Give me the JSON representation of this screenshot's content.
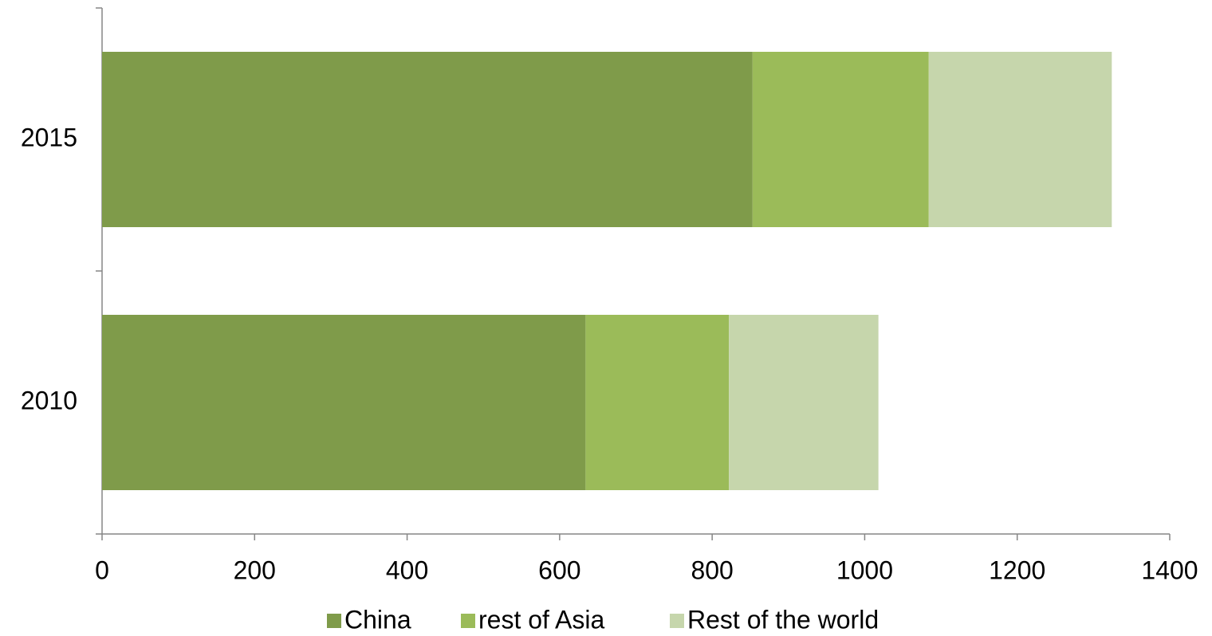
{
  "chart_data": {
    "type": "stacked-bar-horizontal",
    "categories": [
      "2010",
      "2015"
    ],
    "series": [
      {
        "name": "China",
        "color": "#7f9b4a",
        "values": [
          634,
          853
        ]
      },
      {
        "name": "rest of Asia",
        "color": "#9bbb59",
        "values": [
          188,
          231
        ]
      },
      {
        "name": "Rest of the world",
        "color": "#c6d6ac",
        "values": [
          196,
          240
        ]
      }
    ],
    "xlim": [
      0,
      1400
    ],
    "xticks": [
      0,
      200,
      400,
      600,
      800,
      1000,
      1200,
      1400
    ],
    "grid": false,
    "legend": "bottom"
  }
}
